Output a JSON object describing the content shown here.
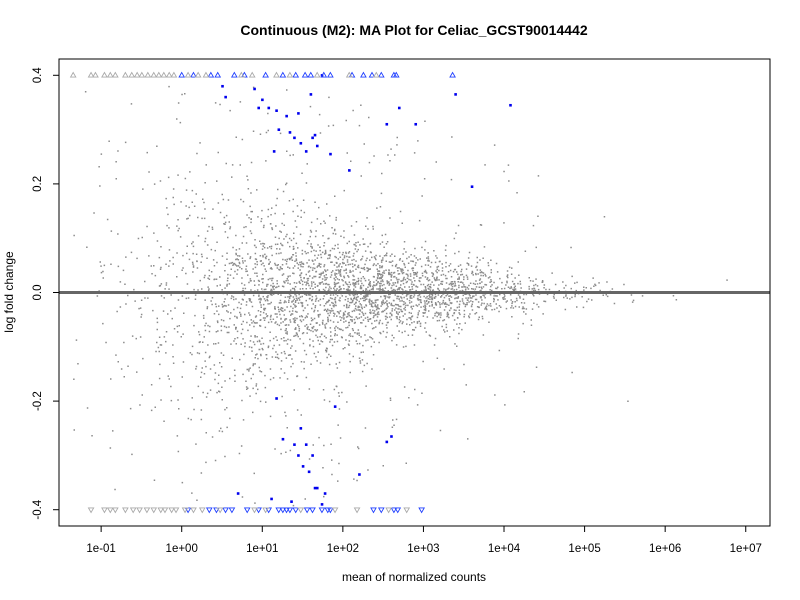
{
  "chart_data": {
    "type": "scatter",
    "title": "Continuous (M2): MA Plot for Celiac_GCST90014442",
    "xlabel": "mean of normalized counts",
    "ylabel": "log fold change",
    "x_scale": "log10",
    "xlim": [
      0.03,
      20000000
    ],
    "ylim": [
      -0.43,
      0.43
    ],
    "x_ticks": [
      "1e-01",
      "1e+00",
      "1e+01",
      "1e+02",
      "1e+03",
      "1e+04",
      "1e+05",
      "1e+06",
      "1e+07"
    ],
    "x_tick_values": [
      0.1,
      1,
      10,
      100,
      1000,
      10000,
      100000,
      1000000,
      10000000
    ],
    "y_ticks": [
      "-0.4",
      "-0.2",
      "0.0",
      "0.2",
      "0.4"
    ],
    "y_tick_values": [
      -0.4,
      -0.2,
      0.0,
      0.2,
      0.4
    ],
    "reference_line": {
      "y": 0,
      "color": "#666666"
    },
    "grid": false,
    "colors": {
      "non_significant": "#8c8c8c",
      "significant": "#0000ee",
      "clipped_non_significant": "#a9a9a9",
      "clipped_significant": "#1f3fff"
    },
    "series": [
      {
        "marker": "dot",
        "color": "#0000ee",
        "points": [
          [
            3.2,
            0.38
          ],
          [
            3.5,
            0.36
          ],
          [
            8,
            0.375
          ],
          [
            9,
            0.34
          ],
          [
            10,
            0.355
          ],
          [
            12,
            0.34
          ],
          [
            14,
            0.26
          ],
          [
            15,
            0.335
          ],
          [
            16,
            0.3
          ],
          [
            20,
            0.325
          ],
          [
            22,
            0.295
          ],
          [
            25,
            0.285
          ],
          [
            28,
            0.33
          ],
          [
            30,
            0.275
          ],
          [
            35,
            0.26
          ],
          [
            40,
            0.365
          ],
          [
            42,
            0.285
          ],
          [
            45,
            0.29
          ],
          [
            48,
            0.27
          ],
          [
            55,
            0.4
          ],
          [
            70,
            0.255
          ],
          [
            120,
            0.225
          ],
          [
            350,
            0.31
          ],
          [
            500,
            0.34
          ],
          [
            800,
            0.31
          ],
          [
            2500,
            0.365
          ],
          [
            4000,
            0.195
          ],
          [
            12000,
            0.345
          ],
          [
            5,
            -0.37
          ],
          [
            13,
            -0.38
          ],
          [
            15,
            -0.195
          ],
          [
            18,
            -0.27
          ],
          [
            23,
            -0.385
          ],
          [
            25,
            -0.28
          ],
          [
            28,
            -0.3
          ],
          [
            30,
            -0.25
          ],
          [
            32,
            -0.32
          ],
          [
            35,
            -0.28
          ],
          [
            38,
            -0.33
          ],
          [
            42,
            -0.3
          ],
          [
            45,
            -0.36
          ],
          [
            48,
            -0.36
          ],
          [
            55,
            -0.39
          ],
          [
            60,
            -0.37
          ],
          [
            80,
            -0.21
          ],
          [
            160,
            -0.335
          ],
          [
            350,
            -0.275
          ],
          [
            400,
            -0.265
          ]
        ]
      },
      {
        "marker": "triangle-up",
        "color": "#1f3fff",
        "y": 0.4,
        "x": [
          1.0,
          1.4,
          2.3,
          2.8,
          4.5,
          6.0,
          11,
          18,
          26,
          34,
          40,
          58,
          70,
          130,
          180,
          230,
          300,
          430,
          460,
          2300
        ]
      },
      {
        "marker": "triangle-up",
        "color": "#a9a9a9",
        "y": 0.4,
        "x": [
          0.045,
          0.075,
          0.085,
          0.11,
          0.13,
          0.15,
          0.2,
          0.24,
          0.28,
          0.32,
          0.38,
          0.45,
          0.52,
          0.6,
          0.7,
          0.8,
          1.2,
          1.6,
          2.0,
          5.5,
          7.5,
          15,
          22,
          48,
          120,
          260
        ]
      },
      {
        "marker": "triangle-down",
        "color": "#1f3fff",
        "y": -0.4,
        "x": [
          1.2,
          2.2,
          2.7,
          3.5,
          4.2,
          6.5,
          9,
          12,
          16,
          18,
          20,
          22,
          26,
          36,
          42,
          55,
          65,
          70,
          240,
          300,
          430,
          480,
          950
        ]
      },
      {
        "marker": "triangle-down",
        "color": "#a9a9a9",
        "y": -0.4,
        "x": [
          0.075,
          0.11,
          0.13,
          0.15,
          0.2,
          0.25,
          0.3,
          0.37,
          0.45,
          0.55,
          0.62,
          0.75,
          0.85,
          1.1,
          1.4,
          1.8,
          3.0,
          8,
          11,
          30,
          80,
          150,
          370,
          620
        ]
      }
    ],
    "background_cloud": {
      "marker": "dot",
      "color": "#8c8c8c",
      "description_free": true,
      "count": 14000,
      "log10_x_range": [
        -1.35,
        7.1
      ],
      "log10_x_center": 2.0,
      "y_center": 0.0
    }
  }
}
